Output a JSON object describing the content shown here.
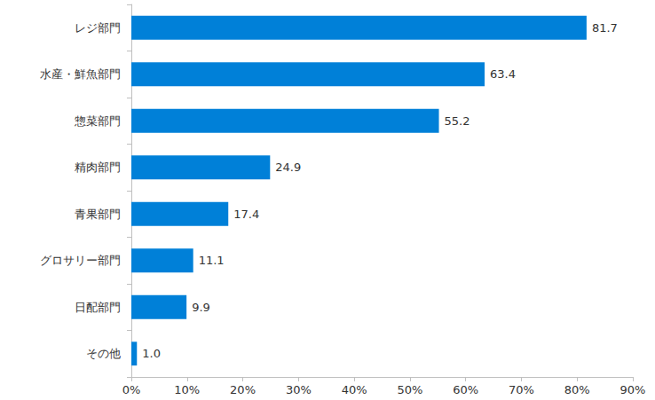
{
  "chart_data": {
    "type": "bar",
    "orientation": "horizontal",
    "categories": [
      "レジ部門",
      "水産・鮮魚部門",
      "惣菜部門",
      "精肉部門",
      "青果部門",
      "グロサリー部門",
      "日配部門",
      "その他"
    ],
    "values": [
      81.7,
      63.4,
      55.2,
      24.9,
      17.4,
      11.1,
      9.9,
      1.0
    ],
    "value_labels": [
      "81.7",
      "63.4",
      "55.2",
      "24.9",
      "17.4",
      "11.1",
      "9.9",
      "1.0"
    ],
    "color": "#0080d8",
    "xlim": [
      0,
      90
    ],
    "xticks": [
      {
        "value": 0,
        "label": "0%"
      },
      {
        "value": 10,
        "label": "10%"
      },
      {
        "value": 20,
        "label": "20%"
      },
      {
        "value": 30,
        "label": "30%"
      },
      {
        "value": 40,
        "label": "40%"
      },
      {
        "value": 50,
        "label": "50%"
      },
      {
        "value": 60,
        "label": "60%"
      },
      {
        "value": 70,
        "label": "70%"
      },
      {
        "value": 80,
        "label": "80%"
      },
      {
        "value": 90,
        "label": "90%"
      }
    ],
    "grid": false,
    "data_labels": true
  }
}
